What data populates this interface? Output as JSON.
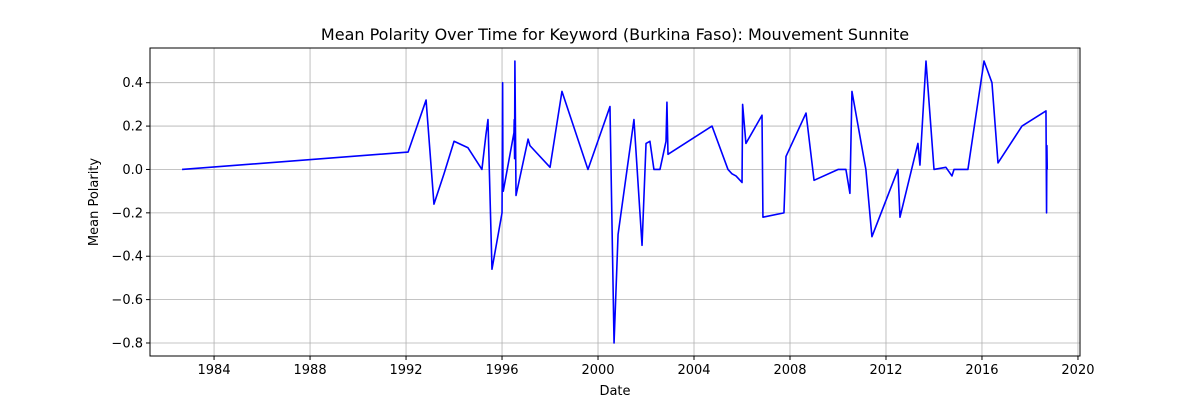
{
  "chart_data": {
    "type": "line",
    "title": "Mean Polarity Over Time for Keyword (Burkina Faso): Mouvement Sunnite",
    "xlabel": "Date",
    "ylabel": "Mean Polarity",
    "x_axis_type": "date",
    "xlim": [
      "1981-05-01",
      "2020-02-01"
    ],
    "ylim": [
      -0.86,
      0.56
    ],
    "x_ticks": [
      "1984",
      "1988",
      "1992",
      "1996",
      "2000",
      "2004",
      "2008",
      "2012",
      "2016",
      "2020"
    ],
    "y_ticks": [
      -0.8,
      -0.6,
      -0.4,
      -0.2,
      0.0,
      0.2,
      0.4
    ],
    "y_tick_labels": [
      "−0.8",
      "−0.6",
      "−0.4",
      "−0.2",
      "0.0",
      "0.2",
      "0.4"
    ],
    "grid": true,
    "legend": "none",
    "series": [
      {
        "color": "#0000ff",
        "x": [
          "1982-09-01",
          "1992-02-01",
          "1992-11-01",
          "1993-03-01",
          "1993-08-01",
          "1994-01-01",
          "1994-08-01",
          "1995-03-01",
          "1995-05-01",
          "1995-06-01",
          "1995-08-01",
          "1996-01-01",
          "1996-01-10",
          "1996-01-15",
          "1996-01-20",
          "1996-07-01",
          "1996-07-05",
          "1996-07-10",
          "1996-07-15",
          "1996-08-01",
          "1997-02-01",
          "1997-03-01",
          "1998-01-01",
          "1998-07-01",
          "1999-08-01",
          "2000-07-01",
          "2000-09-01",
          "2000-11-01",
          "2001-07-01",
          "2001-11-01",
          "2002-01-01",
          "2002-03-01",
          "2002-05-01",
          "2002-08-01",
          "2002-11-01",
          "2002-11-15",
          "2002-12-01",
          "2004-10-01",
          "2005-06-01",
          "2005-08-01",
          "2005-10-01",
          "2006-01-01",
          "2006-01-10",
          "2006-03-01",
          "2006-11-01",
          "2006-11-15",
          "2007-10-01",
          "2007-11-01",
          "2008-09-01",
          "2009-01-01",
          "2010-01-01",
          "2010-05-01",
          "2010-07-01",
          "2010-08-01",
          "2011-03-01",
          "2011-06-01",
          "2012-07-01",
          "2012-08-01",
          "2013-05-01",
          "2013-06-01",
          "2013-09-01",
          "2014-01-01",
          "2014-07-01",
          "2014-10-01",
          "2014-11-01",
          "2015-06-01",
          "2016-02-01",
          "2016-06-01",
          "2016-09-01",
          "2017-09-01",
          "2018-09-01",
          "2018-09-10",
          "2018-09-15",
          "2018-09-20"
        ],
        "y": [
          0.0,
          0.08,
          0.32,
          -0.16,
          -0.02,
          0.13,
          0.1,
          0.0,
          0.16,
          0.23,
          -0.46,
          -0.2,
          0.4,
          -0.09,
          -0.1,
          0.17,
          0.23,
          0.05,
          0.5,
          -0.12,
          0.14,
          0.11,
          0.01,
          0.36,
          0.0,
          0.29,
          -0.8,
          -0.3,
          0.23,
          -0.35,
          0.12,
          0.13,
          0.0,
          0.0,
          0.13,
          0.31,
          0.07,
          0.2,
          0.0,
          -0.02,
          -0.03,
          -0.06,
          0.3,
          0.12,
          0.25,
          -0.22,
          -0.2,
          0.06,
          0.26,
          -0.05,
          0.0,
          0.0,
          -0.11,
          0.36,
          0.0,
          -0.31,
          0.0,
          -0.22,
          0.12,
          0.02,
          0.5,
          0.0,
          0.01,
          -0.03,
          0.0,
          0.0,
          0.5,
          0.4,
          0.03,
          0.2,
          0.27,
          -0.2,
          0.11,
          0.0
        ]
      }
    ]
  }
}
